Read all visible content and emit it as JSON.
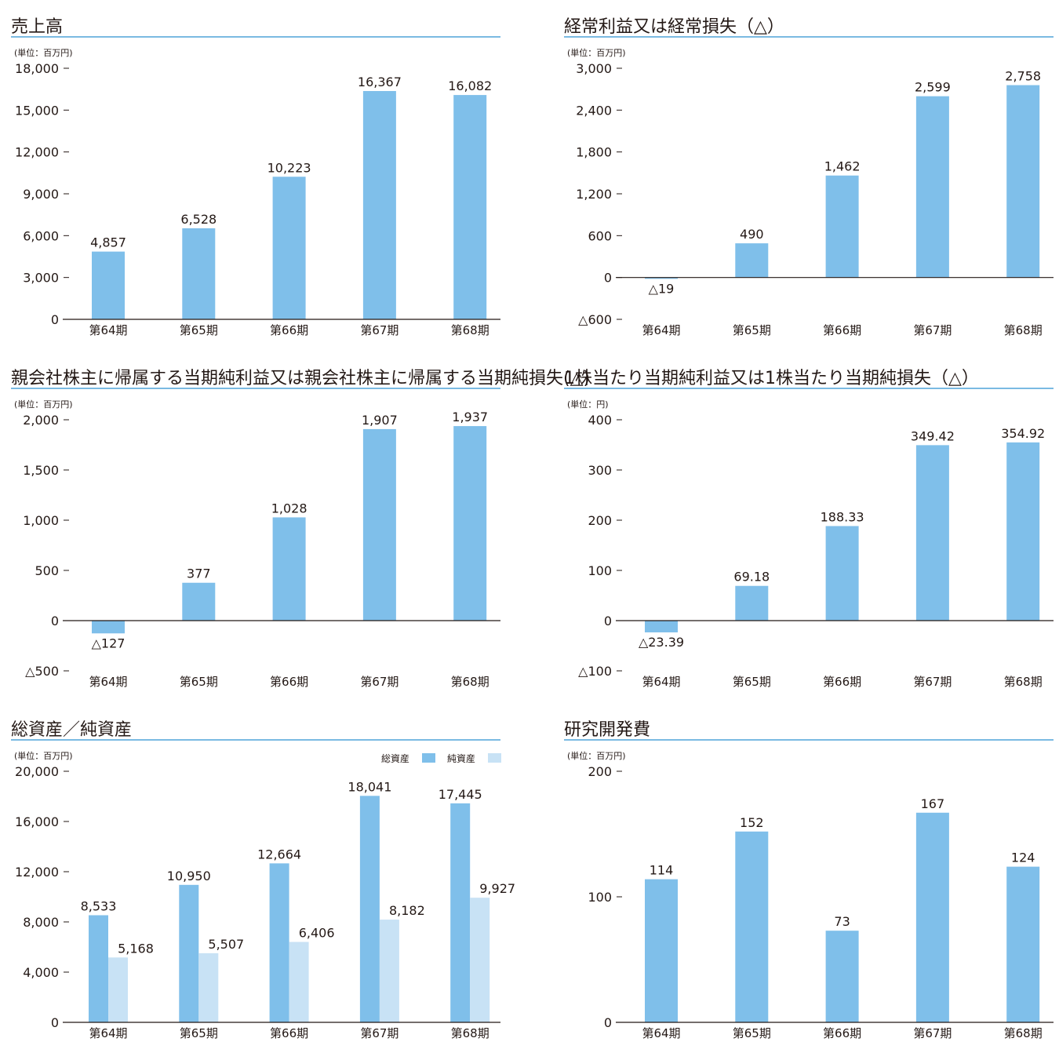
{
  "colors": {
    "bar": "#7fbfea",
    "bar_light": "#c8e2f5",
    "title_line": "#4ea3d8",
    "axis": "#231815"
  },
  "chart_data": [
    {
      "type": "bar",
      "title": "売上高",
      "unit": "(単位：百万円)",
      "categories": [
        "第64期",
        "第65期",
        "第66期",
        "第67期",
        "第68期"
      ],
      "series": [
        {
          "values": [
            4857,
            6528,
            10223,
            16367,
            16082
          ]
        }
      ],
      "value_labels": [
        "4,857",
        "6,528",
        "10,223",
        "16,367",
        "16,082"
      ],
      "ylim": [
        0,
        18000
      ],
      "yticks": [
        0,
        3000,
        6000,
        9000,
        12000,
        15000,
        18000
      ],
      "ytick_labels": [
        "0",
        "3,000",
        "6,000",
        "9,000",
        "12,000",
        "15,000",
        "18,000"
      ]
    },
    {
      "type": "bar",
      "title": "経常利益又は経常損失（△）",
      "unit": "(単位：百万円)",
      "categories": [
        "第64期",
        "第65期",
        "第66期",
        "第67期",
        "第68期"
      ],
      "series": [
        {
          "values": [
            -19,
            490,
            1462,
            2599,
            2758
          ]
        }
      ],
      "value_labels": [
        "△19",
        "490",
        "1,462",
        "2,599",
        "2,758"
      ],
      "ylim": [
        -600,
        3000
      ],
      "yticks": [
        -600,
        0,
        600,
        1200,
        1800,
        2400,
        3000
      ],
      "ytick_labels": [
        "△600",
        "0",
        "600",
        "1,200",
        "1,800",
        "2,400",
        "3,000"
      ]
    },
    {
      "type": "bar",
      "title": "親会社株主に帰属する当期純利益又は親会社株主に帰属する当期純損失(△)",
      "unit": "(単位：百万円)",
      "categories": [
        "第64期",
        "第65期",
        "第66期",
        "第67期",
        "第68期"
      ],
      "series": [
        {
          "values": [
            -127,
            377,
            1028,
            1907,
            1937
          ]
        }
      ],
      "value_labels": [
        "△127",
        "377",
        "1,028",
        "1,907",
        "1,937"
      ],
      "ylim": [
        -500,
        2000
      ],
      "yticks": [
        -500,
        0,
        500,
        1000,
        1500,
        2000
      ],
      "ytick_labels": [
        "△500",
        "0",
        "500",
        "1,000",
        "1,500",
        "2,000"
      ]
    },
    {
      "type": "bar",
      "title": "1株当たり当期純利益又は1株当たり当期純損失（△）",
      "unit": "(単位：円)",
      "categories": [
        "第64期",
        "第65期",
        "第66期",
        "第67期",
        "第68期"
      ],
      "series": [
        {
          "values": [
            -23.39,
            69.18,
            188.33,
            349.42,
            354.92
          ]
        }
      ],
      "value_labels": [
        "△23.39",
        "69.18",
        "188.33",
        "349.42",
        "354.92"
      ],
      "ylim": [
        -100,
        400
      ],
      "yticks": [
        -100,
        0,
        100,
        200,
        300,
        400
      ],
      "ytick_labels": [
        "△100",
        "0",
        "100",
        "200",
        "300",
        "400"
      ]
    },
    {
      "type": "bar",
      "title": "総資産／純資産",
      "unit": "(単位：百万円)",
      "legend": "top-right",
      "categories": [
        "第64期",
        "第65期",
        "第66期",
        "第67期",
        "第68期"
      ],
      "series": [
        {
          "name": "総資産",
          "values": [
            8533,
            10950,
            12664,
            18041,
            17445
          ],
          "labels": [
            "8,533",
            "10,950",
            "12,664",
            "18,041",
            "17,445"
          ]
        },
        {
          "name": "純資産",
          "values": [
            5168,
            5507,
            6406,
            8182,
            9927
          ],
          "labels": [
            "5,168",
            "5,507",
            "6,406",
            "8,182",
            "9,927"
          ]
        }
      ],
      "ylim": [
        0,
        20000
      ],
      "yticks": [
        0,
        4000,
        8000,
        12000,
        16000,
        20000
      ],
      "ytick_labels": [
        "0",
        "4,000",
        "8,000",
        "12,000",
        "16,000",
        "20,000"
      ]
    },
    {
      "type": "bar",
      "title": "研究開発費",
      "unit": "(単位：百万円)",
      "categories": [
        "第64期",
        "第65期",
        "第66期",
        "第67期",
        "第68期"
      ],
      "series": [
        {
          "values": [
            114,
            152,
            73,
            167,
            124
          ]
        }
      ],
      "value_labels": [
        "114",
        "152",
        "73",
        "167",
        "124"
      ],
      "ylim": [
        0,
        200
      ],
      "yticks": [
        0,
        100,
        200
      ],
      "ytick_labels": [
        "0",
        "100",
        "200"
      ]
    }
  ]
}
